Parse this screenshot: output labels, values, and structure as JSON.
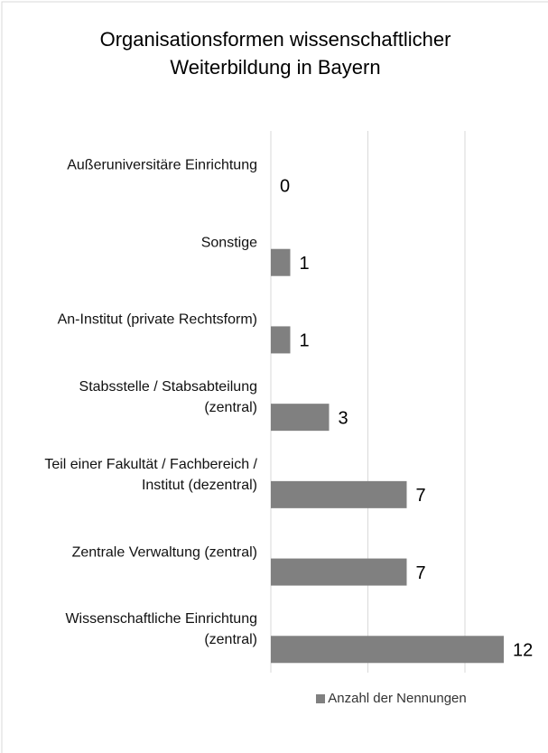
{
  "chart_data": {
    "type": "bar",
    "orientation": "horizontal",
    "title": "Organisationsformen wissenschaftlicher Weiterbildung in Bayern",
    "categories": [
      "Außeruniversitäre Einrichtung",
      "Sonstige",
      "An-Institut (private Rechtsform)",
      "Stabsstelle / Stabsabteilung (zentral)",
      "Teil einer Fakultät / Fachbereich / Institut (dezentral)",
      "Zentrale Verwaltung (zentral)",
      "Wissenschaftliche Einrichtung (zentral)"
    ],
    "series": [
      {
        "name": "Anzahl der Nennungen",
        "color": "#808080",
        "values": [
          0,
          1,
          1,
          3,
          7,
          7,
          12
        ]
      }
    ],
    "xlim": [
      0,
      13
    ],
    "xticks": [
      0,
      5,
      10
    ],
    "grid": true,
    "legend": "bottom"
  }
}
